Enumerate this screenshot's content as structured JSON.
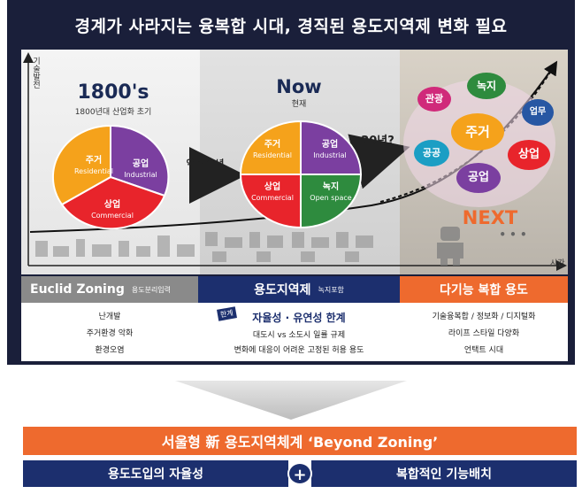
{
  "title": "경계가 사라지는 융복합 시대, 경직된 용도지역제 변화 필요",
  "axis": {
    "y_label": "기술발전",
    "x_label": "시간"
  },
  "eras": [
    {
      "title": "1800's",
      "subtitle": "1800년대 산업화 초기"
    },
    {
      "title": "Now",
      "subtitle": "현재"
    },
    {
      "title": "NEXT"
    }
  ],
  "pie_1800": [
    {
      "ko": "주거",
      "en": "Residential"
    },
    {
      "ko": "공업",
      "en": "Industrial"
    },
    {
      "ko": "상업",
      "en": "Commercial"
    }
  ],
  "pie_now": [
    {
      "ko": "주거",
      "en": "Residential"
    },
    {
      "ko": "공업",
      "en": "Industrial"
    },
    {
      "ko": "상업",
      "en": "Commercial"
    },
    {
      "ko": "녹지",
      "en": "Open space"
    }
  ],
  "transitions": {
    "first": "약 200년",
    "second": "20년?"
  },
  "next_uses": [
    "관광",
    "녹지",
    "업무",
    "주거",
    "공공",
    "상업",
    "공업"
  ],
  "next_more": "• • •",
  "colors": {
    "residential": "#f5a21b",
    "industrial": "#7b3fa0",
    "commercial": "#e8242b",
    "openspace": "#2e8b3e",
    "navy": "#1c2f6e",
    "orange": "#ee6a2e",
    "gray": "#8a8a8a"
  },
  "columns": [
    {
      "title": "Euclid Zoning",
      "note": "용도분리입력",
      "lines": [
        "난개발",
        "주거환경 악화",
        "환경오염"
      ]
    },
    {
      "title": "용도지역제",
      "note": "녹지포함",
      "badge": "한계",
      "headline": "자율성 · 유연성 한계",
      "lines": [
        "대도시 vs 소도시 일률 규제",
        "변화에 대응이 어려운 고정된 허용 용도"
      ]
    },
    {
      "title": "다기능 복합 용도",
      "lines": [
        "기술융복합 / 정보화 / 디지털화",
        "라이프 스타일 다양화",
        "언택트 시대"
      ]
    }
  ],
  "bottom": {
    "headline": "서울형 新 용도지역체계 ‘Beyond Zoning’",
    "left": "용도도입의 자율성",
    "plus": "+",
    "right": "복합적인 기능배치"
  }
}
